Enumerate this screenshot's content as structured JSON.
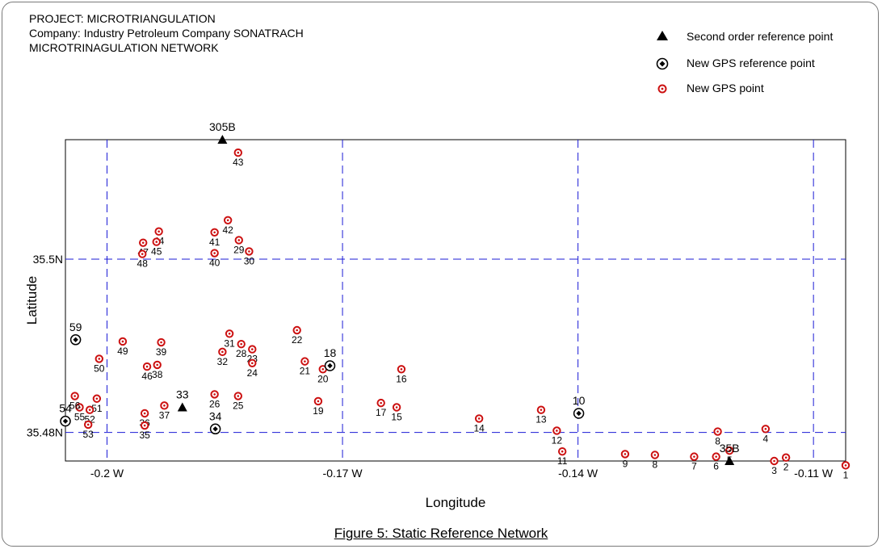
{
  "header": {
    "line1": "PROJECT: MICROTRIANGULATION",
    "line2": "Company: Industry Petroleum Company SONATRACH",
    "line3": "MICROTRINAGULATION NETWORK"
  },
  "legend": {
    "second_order": "Second order reference point",
    "new_ref": "New GPS reference point",
    "new_point": "New GPS point"
  },
  "caption": "Figure 5: Static Reference Network",
  "colors": {
    "point_red": "#cc1111",
    "grid_blue": "#1b1bd6",
    "black": "#000000"
  },
  "chart_data": {
    "type": "scatter",
    "xlabel": "Longitude",
    "ylabel": "Latitude",
    "xlim": [
      -0.2053,
      -0.1059
    ],
    "ylim": [
      35.4767,
      35.5138
    ],
    "grid": true,
    "legend_position": "top-right",
    "x_ticks": [
      {
        "value": -0.2,
        "label": "-0.2 W"
      },
      {
        "value": -0.17,
        "label": "-0.17 W"
      },
      {
        "value": -0.14,
        "label": "-0.14 W"
      },
      {
        "value": -0.11,
        "label": "-0.11 W"
      }
    ],
    "y_ticks": [
      {
        "value": 35.48,
        "label": "35.48N"
      },
      {
        "value": 35.5,
        "label": "35.5N"
      }
    ],
    "second_order_points": [
      {
        "label": "305B",
        "lon": -0.1853,
        "lat": 35.5138
      },
      {
        "label": "33",
        "lon": -0.1904,
        "lat": 35.4829
      },
      {
        "label": "35B",
        "lon": -0.1207,
        "lat": 35.4767
      }
    ],
    "reference_points": [
      {
        "label": "59",
        "lon": -0.204,
        "lat": 35.4907
      },
      {
        "label": "18",
        "lon": -0.1716,
        "lat": 35.4877
      },
      {
        "label": "10",
        "lon": -0.1399,
        "lat": 35.4822
      },
      {
        "label": "34",
        "lon": -0.1862,
        "lat": 35.4804
      },
      {
        "label": "54",
        "lon": -0.2053,
        "lat": 35.4813
      }
    ],
    "gps_points": [
      {
        "label": "1",
        "lon": -0.1059,
        "lat": 35.4762
      },
      {
        "label": "2",
        "lon": -0.1135,
        "lat": 35.4771
      },
      {
        "label": "3",
        "lon": -0.115,
        "lat": 35.4767
      },
      {
        "label": "4",
        "lon": -0.1161,
        "lat": 35.4804
      },
      {
        "label": "5",
        "lon": -0.1207,
        "lat": 35.4779
      },
      {
        "label": "6",
        "lon": -0.1224,
        "lat": 35.4772
      },
      {
        "label": "7",
        "lon": -0.1252,
        "lat": 35.4772
      },
      {
        "label": "8",
        "lon": -0.1302,
        "lat": 35.4774
      },
      {
        "label": "8",
        "lon": -0.1222,
        "lat": 35.4801
      },
      {
        "label": "9",
        "lon": -0.134,
        "lat": 35.4775
      },
      {
        "label": "11",
        "lon": -0.142,
        "lat": 35.4778
      },
      {
        "label": "12",
        "lon": -0.1427,
        "lat": 35.4802
      },
      {
        "label": "13",
        "lon": -0.1447,
        "lat": 35.4826
      },
      {
        "label": "14",
        "lon": -0.1526,
        "lat": 35.4816
      },
      {
        "label": "15",
        "lon": -0.1631,
        "lat": 35.4829
      },
      {
        "label": "16",
        "lon": -0.1625,
        "lat": 35.4873
      },
      {
        "label": "17",
        "lon": -0.1651,
        "lat": 35.4834
      },
      {
        "label": "19",
        "lon": -0.1731,
        "lat": 35.4836
      },
      {
        "label": "20",
        "lon": -0.1725,
        "lat": 35.4873
      },
      {
        "label": "21",
        "lon": -0.1748,
        "lat": 35.4882
      },
      {
        "label": "22",
        "lon": -0.1758,
        "lat": 35.4918
      },
      {
        "label": "23",
        "lon": -0.1815,
        "lat": 35.4896
      },
      {
        "label": "24",
        "lon": -0.1815,
        "lat": 35.488
      },
      {
        "label": "25",
        "lon": -0.1833,
        "lat": 35.4842
      },
      {
        "label": "26",
        "lon": -0.1863,
        "lat": 35.4844
      },
      {
        "label": "28",
        "lon": -0.1829,
        "lat": 35.4902
      },
      {
        "label": "29",
        "lon": -0.1832,
        "lat": 35.5022
      },
      {
        "label": "30",
        "lon": -0.1819,
        "lat": 35.5009
      },
      {
        "label": "31",
        "lon": -0.1844,
        "lat": 35.4914
      },
      {
        "label": "32",
        "lon": -0.1853,
        "lat": 35.4893
      },
      {
        "label": "36",
        "lon": -0.1952,
        "lat": 35.4822
      },
      {
        "label": "35",
        "lon": -0.1952,
        "lat": 35.4808
      },
      {
        "label": "37",
        "lon": -0.1927,
        "lat": 35.4831
      },
      {
        "label": "38",
        "lon": -0.1936,
        "lat": 35.4878
      },
      {
        "label": "39",
        "lon": -0.1931,
        "lat": 35.4904
      },
      {
        "label": "40",
        "lon": -0.1863,
        "lat": 35.5007
      },
      {
        "label": "41",
        "lon": -0.1863,
        "lat": 35.5031
      },
      {
        "label": "42",
        "lon": -0.1846,
        "lat": 35.5045
      },
      {
        "label": "43",
        "lon": -0.1833,
        "lat": 35.5123
      },
      {
        "label": "44",
        "lon": -0.1934,
        "lat": 35.5032
      },
      {
        "label": "45",
        "lon": -0.1937,
        "lat": 35.502
      },
      {
        "label": "46",
        "lon": -0.1949,
        "lat": 35.4876
      },
      {
        "label": "47",
        "lon": -0.1954,
        "lat": 35.5019
      },
      {
        "label": "48",
        "lon": -0.1955,
        "lat": 35.5006
      },
      {
        "label": "49",
        "lon": -0.198,
        "lat": 35.4905
      },
      {
        "label": "50",
        "lon": -0.201,
        "lat": 35.4885
      },
      {
        "label": "51",
        "lon": -0.2013,
        "lat": 35.4839
      },
      {
        "label": "52",
        "lon": -0.2022,
        "lat": 35.4826
      },
      {
        "label": "53",
        "lon": -0.2024,
        "lat": 35.4809
      },
      {
        "label": "55",
        "lon": -0.2035,
        "lat": 35.4829
      },
      {
        "label": "56",
        "lon": -0.2041,
        "lat": 35.4842
      }
    ]
  }
}
